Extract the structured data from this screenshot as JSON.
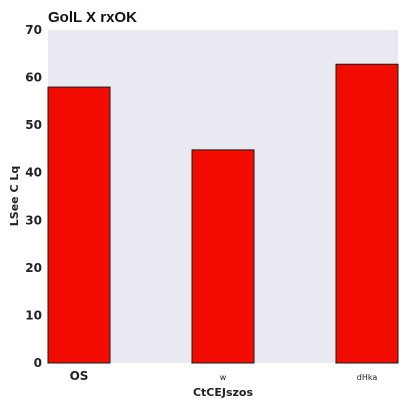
{
  "chart_data": {
    "type": "bar",
    "title": "GolL X rxOK",
    "xlabel": "CtCEJszos",
    "ylabel": "LSee  C Lq",
    "categories": [
      "OS",
      "w",
      "dHka"
    ],
    "values": [
      58,
      44.8,
      62.8
    ],
    "ylim": [
      0,
      70
    ],
    "yticks": [
      0,
      10,
      20,
      30,
      40,
      50,
      60,
      70
    ],
    "grid": false,
    "legend": "none",
    "colors": {
      "bar_fill": "#f20c00",
      "bar_edge": "#1a1a1a",
      "plot_background": "#e9e9f2"
    }
  }
}
